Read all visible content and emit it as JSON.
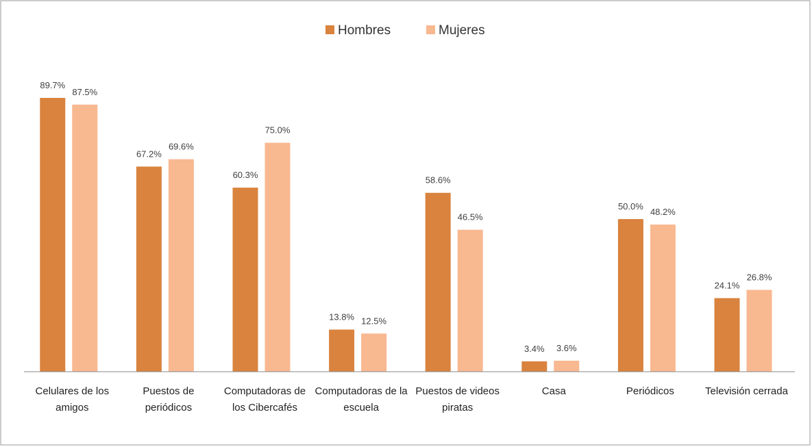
{
  "chart_data": {
    "type": "bar",
    "categories": [
      "Celulares de los amigos",
      "Puestos de periódicos",
      "Computadoras de los Cibercafés",
      "Computadoras de la escuela",
      "Puestos de videos piratas",
      "Casa",
      "Periódicos",
      "Televisión cerrada"
    ],
    "series": [
      {
        "name": "Hombres",
        "color": "#d9833e",
        "values": [
          89.7,
          67.2,
          60.3,
          13.8,
          58.6,
          3.4,
          50.0,
          24.1
        ],
        "value_labels": [
          "89.7%",
          "67.2%",
          "60.3%",
          "13.8%",
          "58.6%",
          "3.4%",
          "50.0%",
          "24.1%"
        ]
      },
      {
        "name": "Mujeres",
        "color": "#f8b890",
        "values": [
          87.5,
          69.6,
          75.0,
          12.5,
          46.5,
          3.6,
          48.2,
          26.8
        ],
        "value_labels": [
          "87.5%",
          "69.6%",
          "75.0%",
          "12.5%",
          "46.5%",
          "3.6%",
          "48.2%",
          "26.8%"
        ]
      }
    ],
    "legend": "top"
  }
}
